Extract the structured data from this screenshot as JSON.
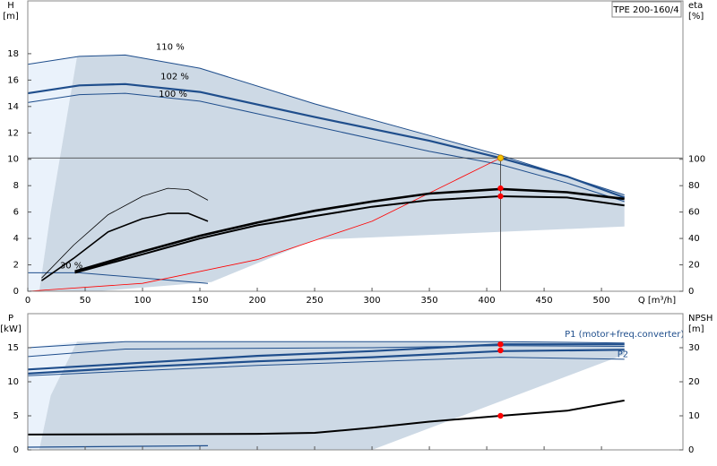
{
  "chart_data": [
    {
      "type": "line",
      "title": "TPE 200-160/4",
      "xlabel": "Q [m³/h]",
      "ylabel": "H",
      "yunit": "[m]",
      "y2label": "eta",
      "y2unit": "[%]",
      "xlim": [
        0,
        571
      ],
      "ylim": [
        0,
        22
      ],
      "y2lim": [
        0,
        220
      ],
      "xticks": [
        0,
        50,
        100,
        150,
        200,
        250,
        300,
        350,
        400,
        450,
        500
      ],
      "yticks": [
        0,
        2,
        4,
        6,
        8,
        10,
        12,
        14,
        16,
        18
      ],
      "y2ticks": [
        0,
        20,
        40,
        60,
        80,
        100
      ],
      "crosshair": true,
      "series": [
        {
          "kind": "area",
          "color": "#eaf2fb",
          "x": [
            0,
            0,
            43,
            20,
            10
          ],
          "values": [
            0,
            17.2,
            17.8,
            6,
            0
          ]
        },
        {
          "kind": "area",
          "color": "#cdd9e5",
          "x": [
            10,
            20,
            43,
            85,
            150,
            250,
            412,
            470,
            520,
            520,
            250,
            160,
            60
          ],
          "values": [
            0,
            6,
            17.8,
            17.9,
            16.9,
            14.2,
            10.3,
            8.7,
            7.3,
            4.9,
            3.9,
            0.7,
            0
          ]
        },
        {
          "kind": "line",
          "name": "110 %",
          "color": "#1f4e8c",
          "width": 1,
          "x": [
            0,
            45,
            85,
            150,
            250,
            350,
            412,
            470,
            520
          ],
          "values": [
            17.2,
            17.8,
            17.9,
            16.9,
            14.2,
            11.8,
            10.3,
            8.7,
            7.3
          ]
        },
        {
          "kind": "line",
          "name": "102 %",
          "color": "#1f4e8c",
          "width": 2.2,
          "x": [
            0,
            45,
            85,
            150,
            250,
            350,
            412,
            470,
            520
          ],
          "values": [
            15.0,
            15.6,
            15.7,
            15.1,
            13.2,
            11.4,
            10.1,
            8.7,
            7.1
          ]
        },
        {
          "kind": "line",
          "name": "100 %",
          "color": "#1f4e8c",
          "width": 1,
          "x": [
            0,
            45,
            85,
            150,
            250,
            350,
            412,
            470,
            520
          ],
          "values": [
            14.3,
            14.9,
            15.0,
            14.4,
            12.5,
            10.6,
            9.6,
            8.2,
            6.8
          ]
        },
        {
          "kind": "line",
          "name": "30 %",
          "color": "#1f4e8c",
          "width": 1,
          "x": [
            0,
            45,
            157
          ],
          "values": [
            1.4,
            1.4,
            0.6
          ]
        },
        {
          "kind": "line",
          "color": "#ff0000",
          "width": 0.8,
          "x": [
            0,
            100,
            200,
            300,
            412
          ],
          "values": [
            0,
            0.6,
            2.4,
            5.3,
            10.1
          ]
        },
        {
          "kind": "line",
          "color": "#000000",
          "width": 0.8,
          "axis": "y2",
          "x": [
            12,
            40,
            70,
            100,
            122,
            140,
            157
          ],
          "values": [
            10,
            35,
            58,
            72,
            78,
            77,
            69
          ]
        },
        {
          "kind": "line",
          "color": "#000000",
          "width": 1.6,
          "axis": "y2",
          "x": [
            12,
            40,
            70,
            100,
            122,
            140,
            157
          ],
          "values": [
            8,
            25,
            45,
            55,
            59,
            59,
            53
          ]
        },
        {
          "kind": "line",
          "color": "#000000",
          "width": 2.6,
          "axis": "y2",
          "x": [
            41,
            100,
            150,
            200,
            250,
            300,
            350,
            412,
            470,
            520
          ],
          "values": [
            15,
            30,
            42,
            52,
            61,
            68,
            74,
            77.5,
            75,
            70
          ]
        },
        {
          "kind": "line",
          "color": "#000000",
          "width": 2,
          "axis": "y2",
          "x": [
            41,
            100,
            150,
            200,
            250,
            300,
            350,
            412,
            470,
            520
          ],
          "values": [
            14,
            28,
            40,
            50,
            57,
            64,
            69,
            72,
            71,
            65
          ]
        },
        {
          "kind": "points",
          "color": "#f5c400",
          "x": [
            412
          ],
          "values": [
            10.1
          ]
        },
        {
          "kind": "points",
          "color": "#ff0000",
          "axis": "y2",
          "x": [
            412,
            412
          ],
          "values": [
            78,
            72
          ]
        }
      ]
    },
    {
      "type": "line",
      "ylabel": "P",
      "yunit": "[kW]",
      "y2label": "NPSH",
      "y2unit": "[m]",
      "xlim": [
        0,
        571
      ],
      "ylim": [
        0,
        20
      ],
      "y2lim": [
        0,
        40
      ],
      "yticks": [
        0,
        5,
        10,
        15
      ],
      "y2ticks": [
        0,
        10,
        20,
        30
      ],
      "series": [
        {
          "kind": "area",
          "color": "#eaf2fb",
          "x": [
            0,
            0,
            43,
            20,
            10
          ],
          "values": [
            0,
            15.0,
            15.9,
            8,
            0
          ]
        },
        {
          "kind": "area",
          "color": "#cdd9e5",
          "x": [
            10,
            20,
            43,
            85,
            300,
            412,
            520,
            520,
            300
          ],
          "values": [
            0,
            8,
            15.9,
            15.9,
            15.9,
            15.9,
            15.7,
            14,
            0
          ]
        },
        {
          "kind": "line",
          "color": "#1f4e8c",
          "width": 1,
          "x": [
            0,
            85,
            300,
            412,
            520
          ],
          "values": [
            15.0,
            15.9,
            15.9,
            15.9,
            15.7
          ]
        },
        {
          "kind": "line",
          "color": "#1f4e8c",
          "width": 1,
          "x": [
            0,
            85,
            300,
            412,
            520
          ],
          "values": [
            13.7,
            14.8,
            15.0,
            15.3,
            15.2
          ]
        },
        {
          "kind": "line",
          "name": "P1 (motor+freq.converter)",
          "color": "#1f4e8c",
          "width": 2.2,
          "x": [
            0,
            100,
            200,
            300,
            412,
            520
          ],
          "values": [
            11.8,
            12.8,
            13.8,
            14.5,
            15.5,
            15.5
          ]
        },
        {
          "kind": "line",
          "name": "P2",
          "color": "#1f4e8c",
          "width": 2.2,
          "x": [
            0,
            100,
            200,
            300,
            412,
            520
          ],
          "values": [
            11.2,
            12.2,
            13.0,
            13.6,
            14.5,
            14.7
          ]
        },
        {
          "kind": "line",
          "color": "#1f4e8c",
          "width": 1,
          "x": [
            0,
            200,
            412,
            520
          ],
          "values": [
            10.9,
            12.4,
            13.6,
            13.3
          ]
        },
        {
          "kind": "line",
          "color": "#1f4e8c",
          "width": 1.2,
          "x": [
            0,
            157
          ],
          "values": [
            0.4,
            0.6
          ]
        },
        {
          "kind": "line",
          "color": "#000000",
          "width": 2,
          "axis": "y2",
          "x": [
            0,
            100,
            200,
            250,
            300,
            350,
            412,
            470,
            520
          ],
          "values": [
            4.5,
            4.6,
            4.7,
            5.0,
            6.5,
            8.3,
            10,
            11.5,
            14.5
          ]
        },
        {
          "kind": "points",
          "color": "#ff0000",
          "x": [
            412,
            412
          ],
          "values": [
            15.5,
            14.6
          ]
        },
        {
          "kind": "points",
          "color": "#ff0000",
          "axis": "y2",
          "x": [
            412
          ],
          "values": [
            10
          ]
        }
      ]
    }
  ]
}
